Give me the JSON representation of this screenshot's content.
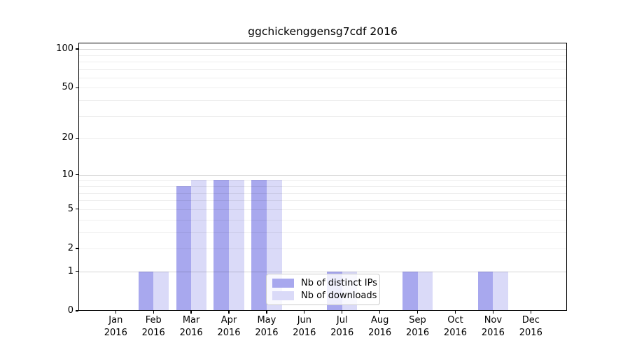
{
  "chart_data": {
    "type": "bar",
    "title": "ggchickenggensg7cdf 2016",
    "x_year_label": "2016",
    "categories": [
      "Jan",
      "Feb",
      "Mar",
      "Apr",
      "May",
      "Jun",
      "Jul",
      "Aug",
      "Sep",
      "Oct",
      "Nov",
      "Dec"
    ],
    "series": [
      {
        "name": "Nb of distinct IPs",
        "color": "#a8a8ee",
        "values": [
          0,
          1,
          8,
          9,
          9,
          0,
          1,
          0,
          1,
          0,
          1,
          0
        ]
      },
      {
        "name": "Nb of downloads",
        "color": "#dadaf8",
        "values": [
          0,
          1,
          9,
          9,
          9,
          0,
          1,
          0,
          1,
          0,
          1,
          0
        ]
      }
    ],
    "y_axis": {
      "scale": "log1p",
      "tick_labels": [
        0,
        1,
        2,
        5,
        10,
        20,
        50,
        100
      ],
      "major_gridlines": [
        1,
        10,
        100
      ],
      "minor_gridlines": [
        2,
        3,
        4,
        5,
        6,
        7,
        8,
        9,
        20,
        30,
        40,
        50,
        60,
        70,
        80,
        90
      ],
      "top_value": 112,
      "bottom_value": 0
    },
    "legend": {
      "position": "lower center",
      "frame_alpha": 0.8
    },
    "grid": "horizontal-only",
    "background": "#ffffff"
  }
}
